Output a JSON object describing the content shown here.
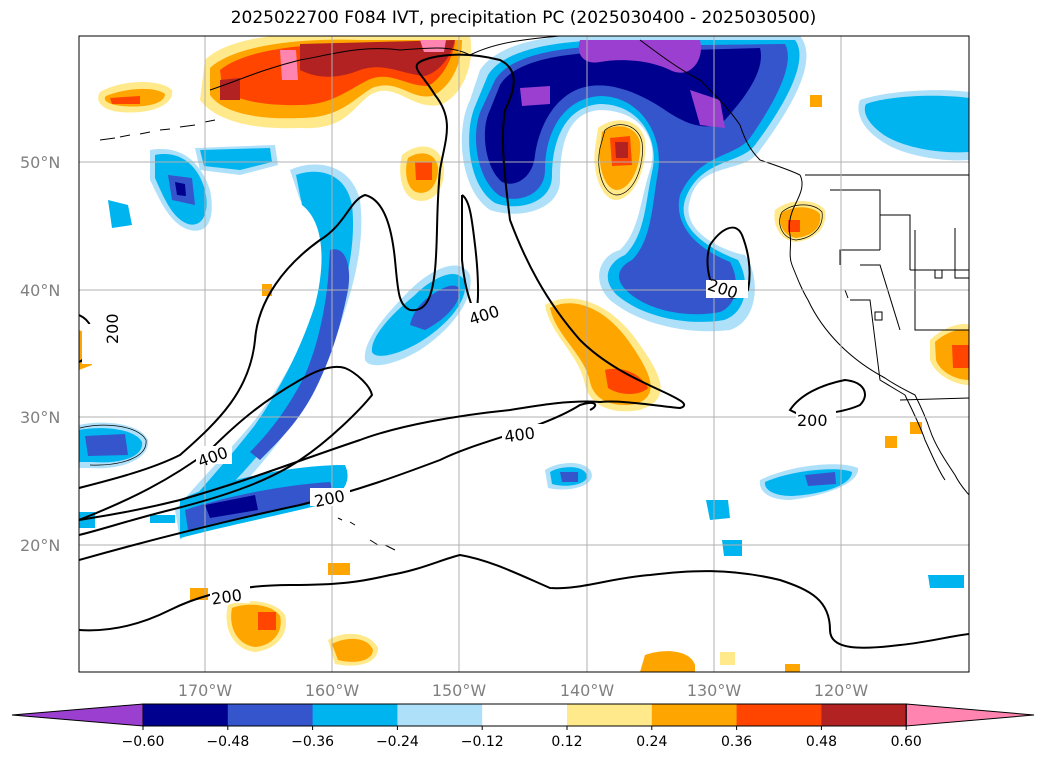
{
  "title": "2025022700 F084 IVT, precipitation PC (2025030400 - 2025030500)",
  "lat_labels": [
    "50°N",
    "40°N",
    "30°N",
    "20°N"
  ],
  "lon_labels": [
    "170°W",
    "160°W",
    "150°W",
    "140°W",
    "130°W",
    "120°W"
  ],
  "contour_labels": [
    "200",
    "400",
    "400",
    "200",
    "200",
    "400",
    "200",
    "200"
  ],
  "colorbar": {
    "ticks": [
      "−0.60",
      "−0.48",
      "−0.36",
      "−0.24",
      "−0.12",
      "0.12",
      "0.24",
      "0.36",
      "0.48",
      "0.60"
    ],
    "colors": [
      "#9b3fd1",
      "#00008f",
      "#3555cc",
      "#00b4f0",
      "#aee0fa",
      "#ffffff",
      "#ffe98a",
      "#ffa500",
      "#ff4500",
      "#b22222",
      "#ff85b0"
    ]
  },
  "colors": {
    "grid": "#b0b0b0",
    "label": "#808080"
  }
}
